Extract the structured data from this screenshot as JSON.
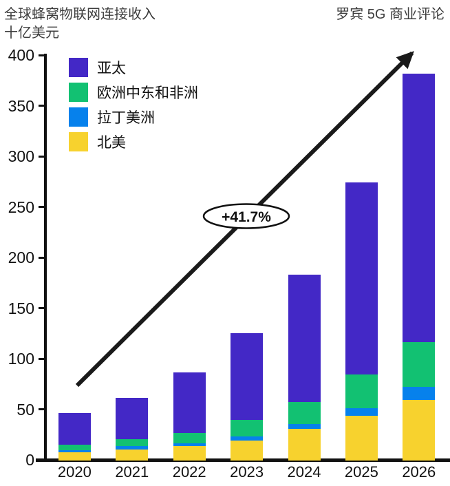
{
  "header": {
    "title_line1": "全球蜂窝物联网连接收入",
    "title_line2": "十亿美元",
    "source": "罗宾 5G 商业评论"
  },
  "chart_data": {
    "type": "bar",
    "stacked": true,
    "title": "全球蜂窝物联网连接收入",
    "ylabel": "十亿美元",
    "categories": [
      "2020",
      "2021",
      "2022",
      "2023",
      "2024",
      "2025",
      "2026"
    ],
    "series": [
      {
        "name": "北美",
        "color": "#f7d22e",
        "values": [
          8,
          11,
          14,
          20,
          31,
          44,
          60
        ]
      },
      {
        "name": "拉丁美洲",
        "color": "#0681ec",
        "values": [
          2,
          3,
          3,
          4,
          5,
          8,
          13
        ]
      },
      {
        "name": "欧洲中东和非洲",
        "color": "#12c172",
        "values": [
          6,
          7,
          10,
          16,
          22,
          33,
          44
        ]
      },
      {
        "name": "亚太",
        "color": "#4328c6",
        "values": [
          31,
          41,
          60,
          86,
          126,
          190,
          265
        ]
      }
    ],
    "stack_order": "bottom-to-top",
    "totals": [
      47,
      62,
      87,
      126,
      184,
      275,
      382
    ],
    "legend_order": [
      "亚太",
      "欧洲中东和非洲",
      "拉丁美洲",
      "北美"
    ],
    "legend_position": "top-left",
    "ylim": [
      0,
      400
    ],
    "yticks": [
      0,
      50,
      100,
      150,
      200,
      250,
      300,
      350,
      400
    ],
    "grid": false,
    "annotation": {
      "label": "+41.7%"
    },
    "arrow_color": "#1a1a1a"
  }
}
